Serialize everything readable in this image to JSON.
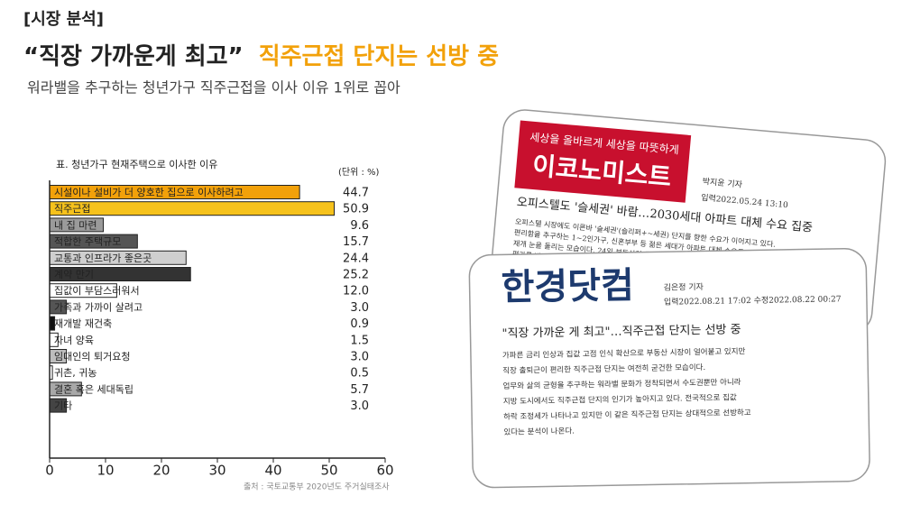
{
  "header": {
    "tag": "[시장 분석]",
    "title_quote": "“직장 가까운게 최고”",
    "title_highlight": "직주근접 단지는 선방 중",
    "subtitle": "워라밸을 추구하는 청년가구 직주근접을 이사 이유 1위로 꼽아"
  },
  "chart_data": {
    "type": "bar",
    "orientation": "horizontal",
    "title": "표. 청년가구 현재주택으로 이사한 이유",
    "unit": "(단위 : %)",
    "categories": [
      "시설이나 설비가 더 양호한 집으로 이사하려고",
      "직주근접",
      "내 집 마련",
      "적합한 주택규모",
      "교통과 인프라가 좋은곳",
      "계약 만기",
      "집값이 부담스러워서",
      "가족과 가까이 살려고",
      "재개발 재건축",
      "자녀 양육",
      "임대인의 퇴거요청",
      "귀촌, 귀농",
      "결혼 혹은 세대독립",
      "기타"
    ],
    "values": [
      44.7,
      50.9,
      9.6,
      15.7,
      24.4,
      25.2,
      12.0,
      3.0,
      0.9,
      1.5,
      3.0,
      0.5,
      5.7,
      3.0
    ],
    "value_labels": [
      "44.7",
      "50.9",
      "9.6",
      "15.7",
      "24.4",
      "25.2",
      "12.0",
      "3.0",
      "0.9",
      "1.5",
      "3.0",
      "0.5",
      "5.7",
      "3.0"
    ],
    "colors": [
      "#f2a10a",
      "#f6c21c",
      "#9a9a9a",
      "#555555",
      "#cfcfcf",
      "#333333",
      "#ffffff",
      "#555555",
      "#111111",
      "#ffffff",
      "#bdbdbd",
      "#ffffff",
      "#a8a8a8",
      "#444444"
    ],
    "xlim": [
      0,
      60
    ],
    "xticks": [
      0,
      10,
      20,
      30,
      40,
      50,
      60
    ],
    "source": "출처 : 국토교통부 2020년도 주거실태조사"
  },
  "clippings": [
    {
      "badge": "세상을 올바르게 세상을 따뜻하게",
      "brand": "이코노미스트",
      "byline": "박지윤 기자",
      "date": "입력2022.05.24 13:10",
      "headline": "오피스텔도 '슬세권' 바람…2030세대 아파트 대체 수요 집중",
      "body": [
        "오피스텔 시장에도 이른바 '슬세권'(슬리퍼+~세권) 단지를 향한 수요가 이어지고 있다.",
        "편리함을 추구하는 1~2인가구, 신혼부부 등 젊은 세대가 아파트 대체 수요로",
        "재개 눈을 돌리는 모습이다. 24일 부동산업계에 따르면 최근 분양 시장에서",
        "평가를 받은 신규 오피스텔이 수요자들의 관심을 모으고 있다."
      ]
    },
    {
      "brand": "한경닷컴",
      "byline": "김은정 기자",
      "date": "입력2022.08.21 17:02 수정2022.08.22 00:27",
      "headline": "\"직장 가까운 게 최고\"…직주근접 단지는 선방 중",
      "body": [
        "가파른 금리 인상과 집값 고점 인식 확산으로 부동산 시장이 얼어붙고 있지만",
        "직장 출퇴근이 편리한 직주근접 단지는 여전히 굳건한 모습이다.",
        "업무와 삶의 균형을 추구하는 워라밸 문화가 정착되면서 수도권뿐만 아니라",
        "지방 도시에서도 직주근접 단지의 인기가 높아지고 있다. 전국적으로 집값",
        "하락 조정세가 나타나고 있지만 이 같은 직주근접 단지는 상대적으로 선방하고",
        "있다는 분석이 나온다."
      ]
    }
  ]
}
